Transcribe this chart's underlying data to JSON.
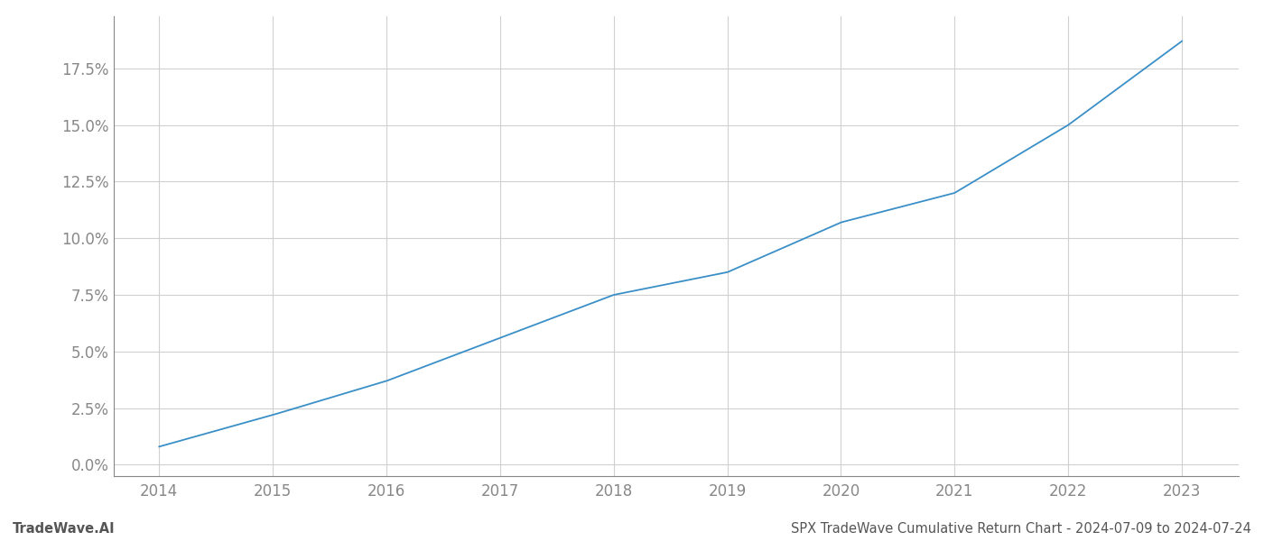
{
  "title_left": "TradeWave.AI",
  "title_right": "SPX TradeWave Cumulative Return Chart - 2024-07-09 to 2024-07-24",
  "x_values": [
    2014,
    2015,
    2016,
    2017,
    2018,
    2019,
    2020,
    2021,
    2022,
    2023
  ],
  "y_values": [
    0.008,
    0.022,
    0.037,
    0.056,
    0.075,
    0.085,
    0.107,
    0.12,
    0.15,
    0.187
  ],
  "line_color": "#3a8fc7",
  "line_width": 1.3,
  "background_color": "#ffffff",
  "grid_color": "#d0d0d0",
  "tick_color": "#888888",
  "xlim": [
    2013.6,
    2023.5
  ],
  "ylim": [
    -0.005,
    0.198
  ],
  "yticks": [
    0.0,
    0.025,
    0.05,
    0.075,
    0.1,
    0.125,
    0.15,
    0.175
  ],
  "xticks": [
    2014,
    2015,
    2016,
    2017,
    2018,
    2019,
    2020,
    2021,
    2022,
    2023
  ],
  "tick_fontsize": 12,
  "footer_fontsize": 10.5
}
